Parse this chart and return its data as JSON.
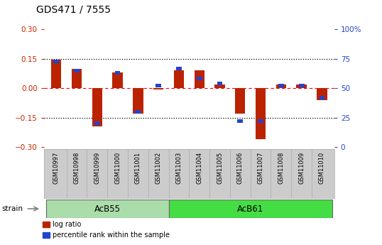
{
  "title": "GDS471 / 7555",
  "samples": [
    "GSM10997",
    "GSM10998",
    "GSM10999",
    "GSM11000",
    "GSM11001",
    "GSM11002",
    "GSM11003",
    "GSM11004",
    "GSM11005",
    "GSM11006",
    "GSM11007",
    "GSM11008",
    "GSM11009",
    "GSM11010"
  ],
  "log_ratio": [
    0.145,
    0.1,
    -0.195,
    0.08,
    -0.13,
    -0.005,
    0.09,
    0.09,
    0.02,
    -0.13,
    -0.26,
    0.02,
    0.02,
    -0.06
  ],
  "percentile_rank": [
    73,
    65,
    20,
    63,
    30,
    52,
    67,
    58,
    54,
    22,
    22,
    52,
    52,
    42
  ],
  "ylim_left": [
    -0.3,
    0.3
  ],
  "ylim_right": [
    0,
    100
  ],
  "yticks_left": [
    -0.3,
    -0.15,
    0.0,
    0.15,
    0.3
  ],
  "yticks_right": [
    0,
    25,
    50,
    75,
    100
  ],
  "bar_color_red": "#bb2200",
  "bar_color_blue": "#2244cc",
  "bar_width": 0.5,
  "blue_bar_height": 0.018,
  "group1_label": "AcB55",
  "group1_samples": [
    0,
    1,
    2,
    3,
    4,
    5
  ],
  "group2_label": "AcB61",
  "group2_samples": [
    6,
    7,
    8,
    9,
    10,
    11,
    12,
    13
  ],
  "group_row_label": "strain",
  "group1_color": "#aaddaa",
  "group2_color": "#44dd44",
  "legend_log_ratio": "log ratio",
  "legend_percentile": "percentile rank within the sample",
  "bg_color": "#ffffff",
  "sample_box_color": "#cccccc",
  "sample_box_edge": "#aaaaaa",
  "title_fontsize": 10,
  "ylabel_left_color": "#cc2200",
  "ylabel_right_color": "#2244cc"
}
